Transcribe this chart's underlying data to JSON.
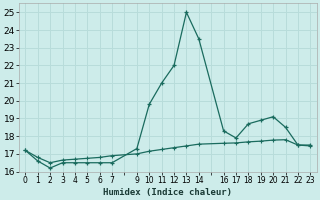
{
  "xlabel": "Humidex (Indice chaleur)",
  "bg_color": "#cdecea",
  "grid_color": "#b8dcda",
  "line_color": "#1a6b5e",
  "ylim": [
    16,
    25.5
  ],
  "xlim": [
    -0.5,
    23.5
  ],
  "yticks": [
    16,
    17,
    18,
    19,
    20,
    21,
    22,
    23,
    24,
    25
  ],
  "xtick_positions": [
    0,
    1,
    2,
    3,
    4,
    5,
    6,
    7,
    8,
    9,
    10,
    11,
    12,
    13,
    14,
    15,
    16,
    17,
    18,
    19,
    20,
    21,
    22,
    23
  ],
  "xtick_labels": [
    "0",
    "1",
    "2",
    "3",
    "4",
    "5",
    "6",
    "7",
    "",
    "9",
    "10",
    "11",
    "12",
    "13",
    "14",
    "",
    "16",
    "17",
    "18",
    "19",
    "20",
    "21",
    "22",
    "23"
  ],
  "line1_x": [
    0,
    1,
    2,
    3,
    4,
    5,
    6,
    7,
    9,
    10,
    11,
    12,
    13,
    14,
    16,
    17,
    18,
    19,
    20,
    21,
    22,
    23
  ],
  "line1_y": [
    17.2,
    16.6,
    16.2,
    16.5,
    16.5,
    16.5,
    16.5,
    16.5,
    17.3,
    19.8,
    21.0,
    22.0,
    25.0,
    23.5,
    18.3,
    17.9,
    18.7,
    18.9,
    19.1,
    18.5,
    17.5,
    17.5
  ],
  "line2_x": [
    0,
    1,
    2,
    3,
    4,
    5,
    6,
    7,
    9,
    10,
    11,
    12,
    13,
    14,
    16,
    17,
    18,
    19,
    20,
    21,
    22,
    23
  ],
  "line2_y": [
    17.2,
    16.8,
    16.5,
    16.65,
    16.7,
    16.75,
    16.8,
    16.9,
    17.0,
    17.15,
    17.25,
    17.35,
    17.45,
    17.55,
    17.6,
    17.62,
    17.68,
    17.72,
    17.78,
    17.8,
    17.5,
    17.45
  ]
}
